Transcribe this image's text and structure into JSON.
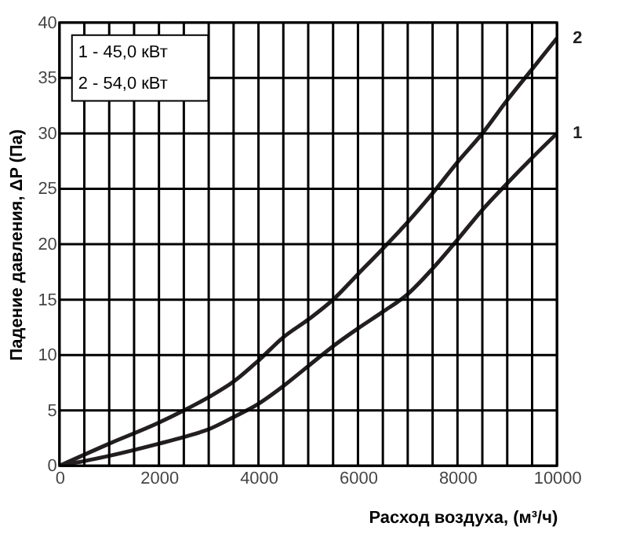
{
  "chart_data": {
    "type": "line",
    "xlabel": "Расход воздуха, (м³/ч)",
    "ylabel": "Падение давления, ΔP (Па)",
    "x": [
      0,
      1000,
      2000,
      2500,
      3000,
      3500,
      4000,
      4500,
      5000,
      5500,
      6000,
      6500,
      7000,
      7500,
      8000,
      8500,
      9000,
      9500,
      10000
    ],
    "series": [
      {
        "name": "1",
        "color": "#231f20",
        "values": [
          0,
          0.9,
          2,
          2.6,
          3.3,
          4.4,
          5.6,
          7.2,
          9,
          10.8,
          12.4,
          13.9,
          15.5,
          17.8,
          20.4,
          23.1,
          25.5,
          27.8,
          30
        ]
      },
      {
        "name": "2",
        "color": "#231f20",
        "values": [
          0,
          2,
          3.9,
          5,
          6.2,
          7.6,
          9.5,
          11.6,
          13.2,
          15,
          17.3,
          19.6,
          22,
          24.6,
          27.4,
          30,
          33,
          35.8,
          38.6
        ]
      }
    ],
    "annotations": [
      "1 - 45,0 кВт",
      "2 - 54,0 кВт"
    ],
    "xlim": [
      0,
      10000
    ],
    "ylim": [
      0,
      40
    ],
    "xticks": [
      0,
      {
        "value": 500,
        "label": null
      },
      {
        "value": 1000,
        "label": null
      },
      {
        "value": 1500,
        "label": null
      },
      2000,
      {
        "value": 2500,
        "label": null
      },
      {
        "value": 3000,
        "label": null
      },
      {
        "value": 3500,
        "label": null
      },
      4000,
      {
        "value": 4500,
        "label": null
      },
      {
        "value": 5000,
        "label": null
      },
      {
        "value": 5500,
        "label": null
      },
      6000,
      {
        "value": 6500,
        "label": null
      },
      {
        "value": 7000,
        "label": null
      },
      {
        "value": 7500,
        "label": null
      },
      8000,
      {
        "value": 8500,
        "label": null
      },
      {
        "value": 9000,
        "label": null
      },
      {
        "value": 9500,
        "label": null
      },
      10000
    ],
    "yticks": [
      0,
      5,
      10,
      15,
      20,
      25,
      30,
      35,
      40
    ],
    "grid": true,
    "legend": false,
    "marker": "none",
    "line_style": "solid"
  }
}
